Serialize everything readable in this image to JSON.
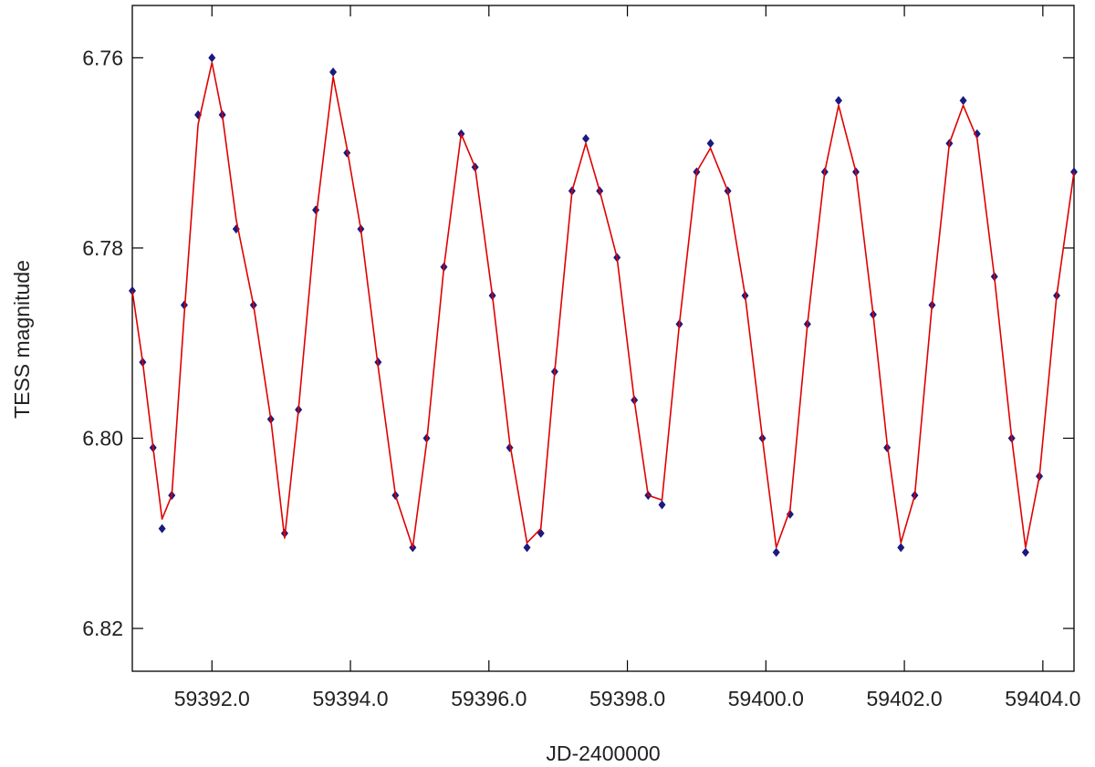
{
  "chart_data": {
    "type": "scatter",
    "title": "",
    "xlabel": "JD-2400000",
    "ylabel": "TESS magnitude",
    "xlim": [
      59390.85,
      59404.45
    ],
    "ylim": [
      6.8245,
      6.7545
    ],
    "y_inverted": true,
    "grid": false,
    "legend": "none",
    "x_ticks": [
      59392.0,
      59394.0,
      59396.0,
      59398.0,
      59400.0,
      59402.0,
      59404.0
    ],
    "x_tick_labels": [
      "59392.0",
      "59394.0",
      "59396.0",
      "59398.0",
      "59400.0",
      "59402.0",
      "59404.0"
    ],
    "y_ticks": [
      6.76,
      6.78,
      6.8,
      6.82
    ],
    "y_tick_labels": [
      "6.76",
      "6.78",
      "6.80",
      "6.82"
    ],
    "series": [
      {
        "kind": "points",
        "color": "#1a1a80",
        "x": [
          59390.85,
          59391.0,
          59391.15,
          59391.28,
          59391.42,
          59391.6,
          59391.8,
          59392.0,
          59392.15,
          59392.35,
          59392.6,
          59392.85,
          59393.05,
          59393.25,
          59393.5,
          59393.75,
          59393.95,
          59394.15,
          59394.4,
          59394.65,
          59394.9,
          59395.1,
          59395.35,
          59395.6,
          59395.8,
          59396.05,
          59396.3,
          59396.55,
          59396.75,
          59396.95,
          59397.2,
          59397.4,
          59397.6,
          59397.85,
          59398.1,
          59398.3,
          59398.5,
          59398.75,
          59399.0,
          59399.2,
          59399.45,
          59399.7,
          59399.95,
          59400.15,
          59400.35,
          59400.6,
          59400.85,
          59401.05,
          59401.3,
          59401.55,
          59401.75,
          59401.95,
          59402.15,
          59402.4,
          59402.65,
          59402.85,
          59403.05,
          59403.3,
          59403.55,
          59403.75,
          59403.95,
          59404.2,
          59404.45
        ],
        "y": [
          6.7845,
          6.792,
          6.801,
          6.8095,
          6.806,
          6.786,
          6.766,
          6.76,
          6.766,
          6.778,
          6.786,
          6.798,
          6.81,
          6.797,
          6.776,
          6.7615,
          6.77,
          6.778,
          6.792,
          6.806,
          6.8115,
          6.8,
          6.782,
          6.768,
          6.7715,
          6.785,
          6.801,
          6.8115,
          6.81,
          6.793,
          6.774,
          6.7685,
          6.774,
          6.781,
          6.796,
          6.806,
          6.807,
          6.788,
          6.772,
          6.769,
          6.774,
          6.785,
          6.8,
          6.812,
          6.808,
          6.788,
          6.772,
          6.7645,
          6.772,
          6.787,
          6.801,
          6.8115,
          6.806,
          6.786,
          6.769,
          6.7645,
          6.768,
          6.783,
          6.8,
          6.812,
          6.804,
          6.785,
          6.772
        ]
      },
      {
        "kind": "fit-line",
        "color": "#e00000",
        "x": [
          59390.85,
          59391.0,
          59391.15,
          59391.28,
          59391.42,
          59391.6,
          59391.8,
          59392.0,
          59392.15,
          59392.35,
          59392.6,
          59392.85,
          59393.05,
          59393.25,
          59393.5,
          59393.75,
          59393.95,
          59394.15,
          59394.4,
          59394.65,
          59394.9,
          59395.1,
          59395.35,
          59395.6,
          59395.8,
          59396.05,
          59396.3,
          59396.55,
          59396.75,
          59396.95,
          59397.2,
          59397.4,
          59397.6,
          59397.85,
          59398.1,
          59398.3,
          59398.5,
          59398.75,
          59399.0,
          59399.2,
          59399.45,
          59399.7,
          59399.95,
          59400.15,
          59400.35,
          59400.6,
          59400.85,
          59401.05,
          59401.3,
          59401.55,
          59401.75,
          59401.95,
          59402.15,
          59402.4,
          59402.65,
          59402.85,
          59403.05,
          59403.3,
          59403.55,
          59403.75,
          59403.95,
          59404.2,
          59404.45
        ],
        "y": [
          6.7845,
          6.792,
          6.801,
          6.8085,
          6.806,
          6.787,
          6.767,
          6.7605,
          6.766,
          6.777,
          6.786,
          6.798,
          6.8105,
          6.797,
          6.777,
          6.762,
          6.7695,
          6.778,
          6.7925,
          6.806,
          6.8115,
          6.8005,
          6.782,
          6.768,
          6.7715,
          6.785,
          6.8005,
          6.811,
          6.8095,
          6.793,
          6.774,
          6.769,
          6.774,
          6.781,
          6.796,
          6.806,
          6.8065,
          6.788,
          6.772,
          6.7695,
          6.774,
          6.785,
          6.8,
          6.8115,
          6.8075,
          6.788,
          6.772,
          6.765,
          6.772,
          6.787,
          6.8005,
          6.811,
          6.806,
          6.786,
          6.769,
          6.765,
          6.7685,
          6.783,
          6.8,
          6.8115,
          6.804,
          6.785,
          6.772
        ]
      }
    ]
  }
}
